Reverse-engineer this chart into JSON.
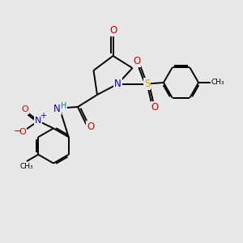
{
  "bg_color": "#e8e8e8",
  "atom_colors": {
    "C": "#000000",
    "N": "#0000cc",
    "O": "#dd0000",
    "S": "#ccaa00",
    "H": "#008888"
  },
  "bond_color": "#000000",
  "line_width": 1.4
}
